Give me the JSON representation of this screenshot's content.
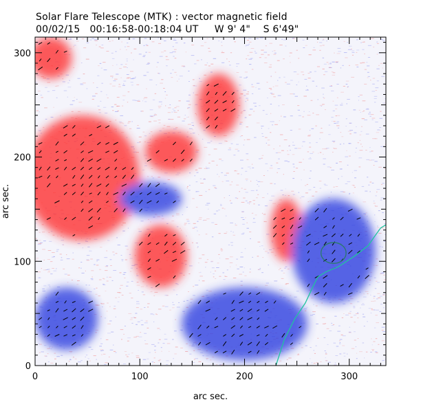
{
  "header": {
    "line1": "Solar Flare Telescope (MTK) : vector magnetic field",
    "line2_date": "00/02/15",
    "line2_time": "00:16:58-00:18:04 UT",
    "line2_lon": "W 9' 4\"",
    "line2_lat": "S 6'49\""
  },
  "chart_data": {
    "type": "heatmap",
    "title": "Solar Flare Telescope (MTK) : vector magnetic field",
    "subtitle": "00/02/15   00:16:58-00:18:04 UT     W 9' 4\"    S 6'49\"",
    "xlabel": "arc sec.",
    "ylabel": "arc sec.",
    "xlim": [
      0,
      335
    ],
    "ylim": [
      0,
      315
    ],
    "x_ticks": [
      0,
      100,
      200,
      300
    ],
    "y_ticks": [
      0,
      100,
      200,
      300
    ],
    "colors": {
      "positive": "#ff3030",
      "negative": "#2f3fe0",
      "contour": "#21c4a0",
      "contour2": "#2a7a6a",
      "vector": "#000000"
    },
    "regions": [
      {
        "polarity": "positive",
        "name": "large-red-west",
        "cx": 45,
        "cy": 180,
        "rx": 55,
        "ry": 60
      },
      {
        "polarity": "positive",
        "name": "red-top-left",
        "cx": 15,
        "cy": 295,
        "rx": 20,
        "ry": 20
      },
      {
        "polarity": "positive",
        "name": "red-center-top",
        "cx": 175,
        "cy": 250,
        "rx": 20,
        "ry": 30
      },
      {
        "polarity": "positive",
        "name": "red-center",
        "cx": 130,
        "cy": 205,
        "rx": 25,
        "ry": 20
      },
      {
        "polarity": "positive",
        "name": "red-south-center",
        "cx": 120,
        "cy": 105,
        "rx": 25,
        "ry": 30
      },
      {
        "polarity": "positive",
        "name": "red-east",
        "cx": 240,
        "cy": 130,
        "rx": 15,
        "ry": 30
      },
      {
        "polarity": "negative",
        "name": "blue-center-spot",
        "cx": 110,
        "cy": 160,
        "rx": 30,
        "ry": 16
      },
      {
        "polarity": "negative",
        "name": "blue-east-spot",
        "cx": 285,
        "cy": 110,
        "rx": 40,
        "ry": 50
      },
      {
        "polarity": "negative",
        "name": "blue-southwest",
        "cx": 30,
        "cy": 45,
        "rx": 30,
        "ry": 30
      },
      {
        "polarity": "negative",
        "name": "blue-south",
        "cx": 200,
        "cy": 40,
        "rx": 60,
        "ry": 35
      }
    ],
    "contour": {
      "x": [
        230,
        238,
        248,
        258,
        265,
        270,
        278,
        290,
        305,
        318,
        325,
        330,
        335
      ],
      "y": [
        0,
        25,
        45,
        60,
        75,
        85,
        90,
        95,
        105,
        115,
        125,
        132,
        135
      ]
    },
    "contour_loop": {
      "cx": 285,
      "cy": 108,
      "rx": 12,
      "ry": 10
    }
  }
}
